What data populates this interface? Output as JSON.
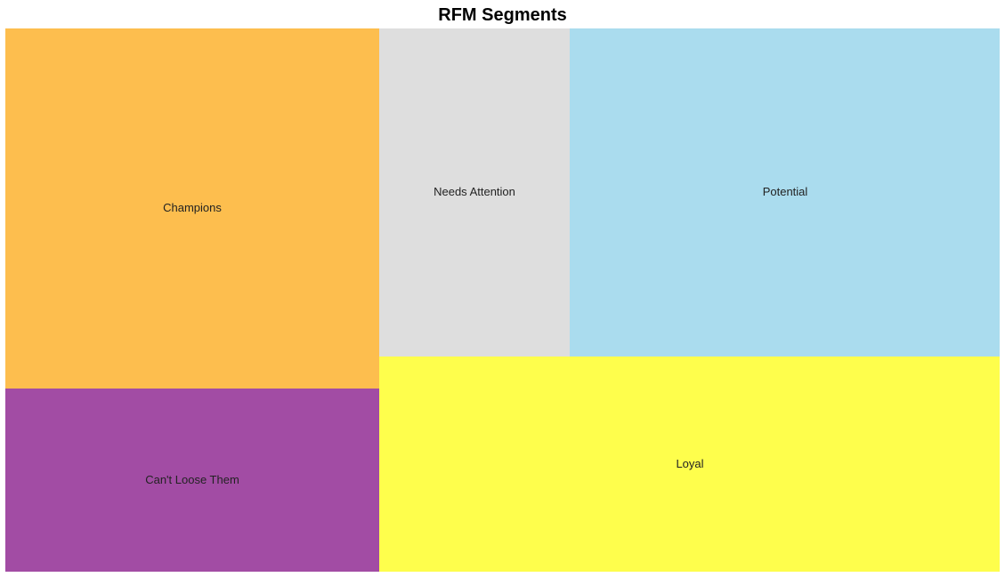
{
  "chart_data": {
    "type": "treemap",
    "title": "RFM Segments",
    "segments": [
      {
        "label": "Champions",
        "color": "#fdbe4e"
      },
      {
        "label": "Can't Loose Them",
        "color": "#a24ca4"
      },
      {
        "label": "Needs Attention",
        "color": "#dedede"
      },
      {
        "label": "Potential",
        "color": "#aadcee"
      },
      {
        "label": "Loyal",
        "color": "#fefe4c"
      }
    ]
  }
}
